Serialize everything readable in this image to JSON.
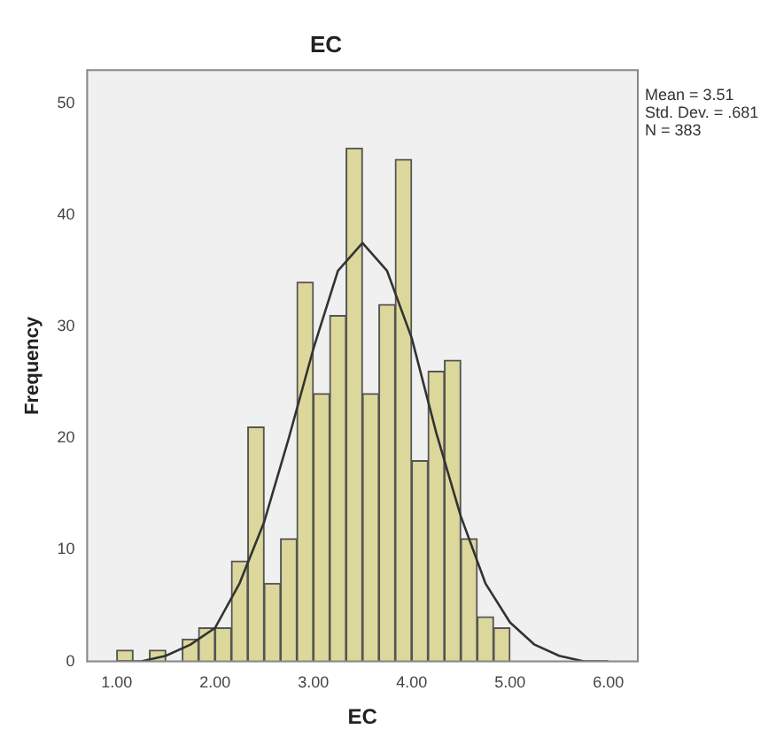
{
  "chart_data": {
    "type": "histogram",
    "title": "EC",
    "xlabel": "EC",
    "ylabel": "Frequency",
    "bins": [
      1,
      1.167,
      1.333,
      1.5,
      1.667,
      1.833,
      2,
      2.167,
      2.333,
      2.5,
      2.667,
      2.833,
      3,
      3.167,
      3.333,
      3.5,
      3.667,
      3.833,
      4,
      4.167,
      4.333,
      4.5,
      4.667,
      4.833,
      5
    ],
    "values": [
      1,
      0,
      1,
      0,
      2,
      3,
      3,
      9,
      21,
      7,
      11,
      34,
      24,
      31,
      46,
      24,
      32,
      45,
      18,
      26,
      27,
      11,
      4,
      3
    ],
    "color": "#dcd89c",
    "series": [
      {
        "type": "line",
        "color": "#333333",
        "x": [
          1,
          1.25,
          1.5,
          1.75,
          2,
          2.25,
          2.5,
          2.75,
          3,
          3.25,
          3.5,
          3.75,
          4,
          4.25,
          4.5,
          4.75,
          5,
          5.25,
          5.5,
          5.75,
          6
        ],
        "values": [
          0,
          0,
          0.5,
          1.5,
          3,
          7,
          12.5,
          20,
          28,
          35,
          37.5,
          35,
          29,
          20.5,
          13,
          7,
          3.5,
          1.5,
          0.5,
          0,
          0
        ]
      }
    ],
    "xlim": [
      0.7,
      6.3
    ],
    "xticks": [
      {
        "value": 1,
        "label": "1.00"
      },
      {
        "value": 2,
        "label": "2.00"
      },
      {
        "value": 3,
        "label": "3.00"
      },
      {
        "value": 4,
        "label": "4.00"
      },
      {
        "value": 5,
        "label": "5.00"
      },
      {
        "value": 6,
        "label": "6.00"
      }
    ],
    "ylim": [
      0,
      53
    ],
    "yticks": [
      0,
      10,
      20,
      30,
      40,
      50
    ],
    "grid": false,
    "legend": false,
    "annotations": [
      "Mean = 3.51",
      "Std. Dev. = .681",
      "N = 383"
    ]
  }
}
